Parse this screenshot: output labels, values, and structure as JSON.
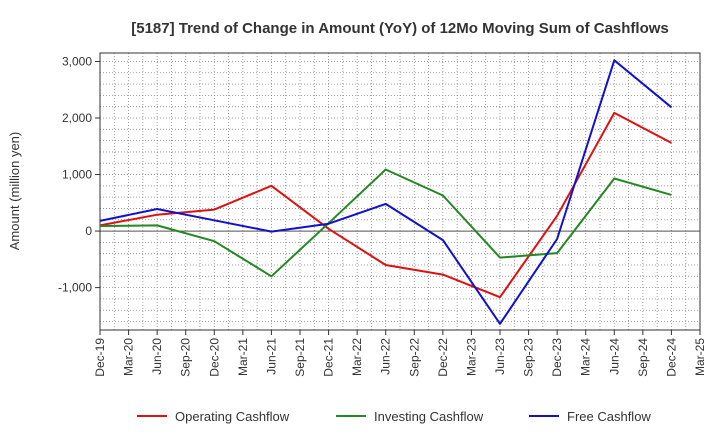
{
  "chart_data": {
    "type": "line",
    "title": "[5187]  Trend of Change in Amount (YoY) of 12Mo Moving Sum of Cashflows",
    "xlabel": "",
    "ylabel": "Amount (million yen)",
    "ylim": [
      -1750,
      3150
    ],
    "yticks": [
      3000,
      2000,
      1000,
      0,
      -1000
    ],
    "ytick_labels": [
      "3,000",
      "2,000",
      "1,000",
      "0",
      "-1,000"
    ],
    "categories": [
      "Dec-19",
      "Mar-20",
      "Jun-20",
      "Sep-20",
      "Dec-20",
      "Mar-21",
      "Jun-21",
      "Sep-21",
      "Dec-21",
      "Mar-22",
      "Jun-22",
      "Sep-22",
      "Dec-22",
      "Mar-23",
      "Jun-23",
      "Sep-23",
      "Dec-23",
      "Mar-24",
      "Jun-24",
      "Sep-24",
      "Dec-24",
      "Mar-25"
    ],
    "series": [
      {
        "name": "Operating Cashflow",
        "color": "#dd1111",
        "points": [
          [
            "Dec-19",
            100
          ],
          [
            "Jun-20",
            290
          ],
          [
            "Dec-20",
            380
          ],
          [
            "Jun-21",
            800
          ],
          [
            "Dec-21",
            40
          ],
          [
            "Jun-22",
            -600
          ],
          [
            "Dec-22",
            -770
          ],
          [
            "Jun-23",
            -1170
          ],
          [
            "Dec-23",
            270
          ],
          [
            "Jun-24",
            2090
          ],
          [
            "Dec-24",
            1560
          ]
        ]
      },
      {
        "name": "Investing Cashflow",
        "color": "#228822",
        "points": [
          [
            "Dec-19",
            90
          ],
          [
            "Jun-20",
            100
          ],
          [
            "Dec-20",
            -180
          ],
          [
            "Jun-21",
            -800
          ],
          [
            "Dec-21",
            140
          ],
          [
            "Jun-22",
            1090
          ],
          [
            "Dec-22",
            630
          ],
          [
            "Jun-23",
            -470
          ],
          [
            "Dec-23",
            -390
          ],
          [
            "Jun-24",
            930
          ],
          [
            "Dec-24",
            640
          ]
        ]
      },
      {
        "name": "Free Cashflow",
        "color": "#1111cc",
        "points": [
          [
            "Dec-19",
            180
          ],
          [
            "Jun-20",
            390
          ],
          [
            "Dec-20",
            190
          ],
          [
            "Jun-21",
            -10
          ],
          [
            "Dec-21",
            130
          ],
          [
            "Jun-22",
            480
          ],
          [
            "Dec-22",
            -160
          ],
          [
            "Jun-23",
            -1640
          ],
          [
            "Dec-23",
            -140
          ],
          [
            "Jun-24",
            3020
          ],
          [
            "Dec-24",
            2190
          ]
        ]
      }
    ],
    "legend": {
      "position": "bottom"
    },
    "grid": true
  }
}
